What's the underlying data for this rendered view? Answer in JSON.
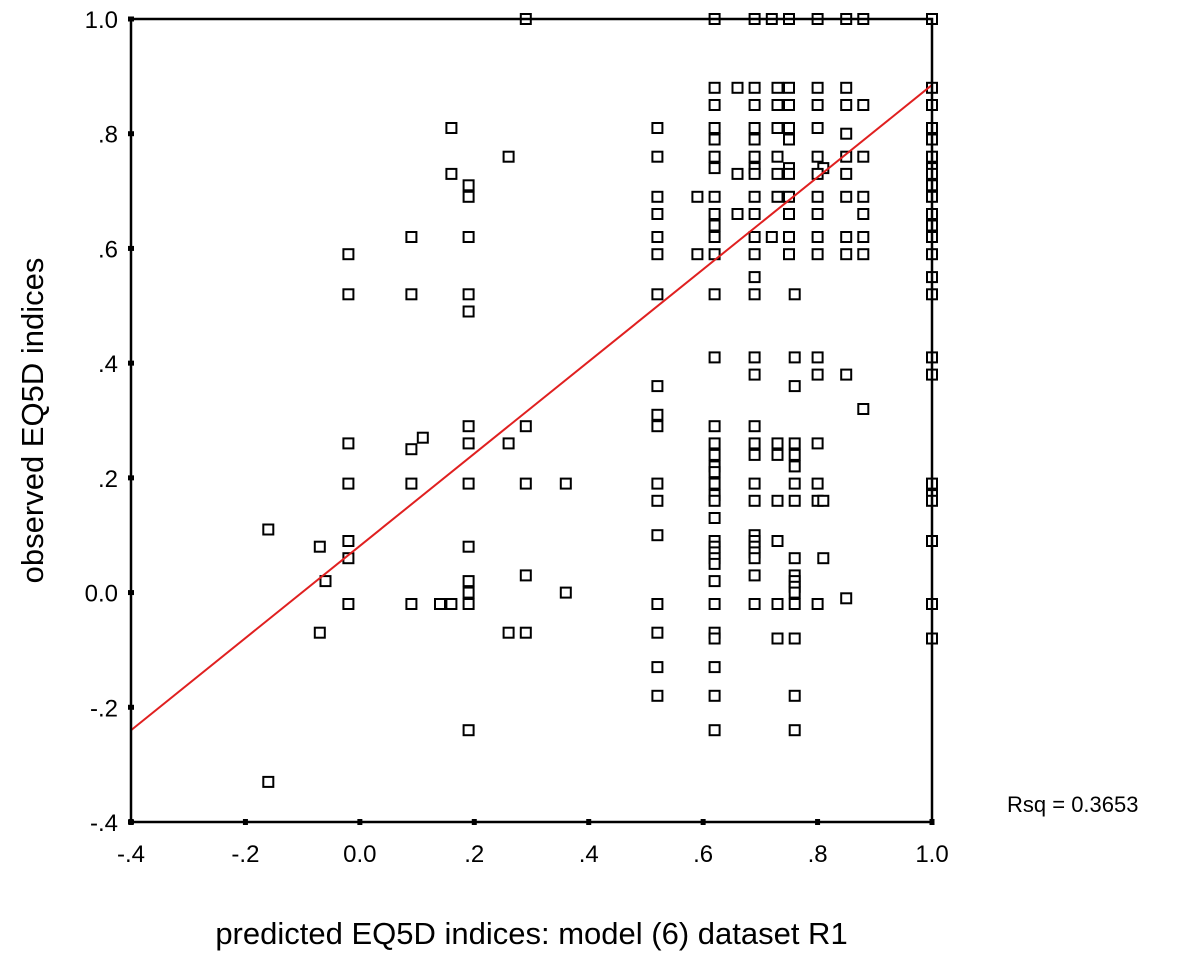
{
  "chart_data": {
    "type": "scatter",
    "xlabel": "predicted EQ5D indices: model (6) dataset R1",
    "ylabel": "observed EQ5D indices",
    "xlim": [
      -0.4,
      1.0
    ],
    "ylim": [
      -0.4,
      1.0
    ],
    "x_ticks": [
      -0.4,
      -0.2,
      0.0,
      0.2,
      0.4,
      0.6,
      0.8,
      1.0
    ],
    "x_tick_labels": [
      "-.4",
      "-.2",
      "0.0",
      ".2",
      ".4",
      ".6",
      ".8",
      "1.0"
    ],
    "y_ticks": [
      -0.4,
      -0.2,
      0.0,
      0.2,
      0.4,
      0.6,
      0.8,
      1.0
    ],
    "y_tick_labels": [
      "-.4",
      "-.2",
      "0.0",
      ".2",
      ".4",
      ".6",
      ".8",
      "1.0"
    ],
    "grid": false,
    "annotation": "Rsq = 0.3653",
    "marker": "open-square",
    "fit_line": {
      "x": [
        -0.4,
        1.0
      ],
      "y": [
        -0.24,
        0.885
      ],
      "color": "#e02020"
    },
    "points": [
      [
        0.29,
        1.0
      ],
      [
        0.62,
        1.0
      ],
      [
        0.69,
        1.0
      ],
      [
        0.72,
        1.0
      ],
      [
        0.75,
        1.0
      ],
      [
        0.8,
        1.0
      ],
      [
        0.85,
        1.0
      ],
      [
        0.88,
        1.0
      ],
      [
        1.0,
        1.0
      ],
      [
        0.62,
        0.88
      ],
      [
        0.66,
        0.88
      ],
      [
        0.69,
        0.88
      ],
      [
        0.73,
        0.88
      ],
      [
        0.75,
        0.88
      ],
      [
        0.8,
        0.88
      ],
      [
        0.85,
        0.88
      ],
      [
        1.0,
        0.88
      ],
      [
        0.62,
        0.85
      ],
      [
        0.69,
        0.85
      ],
      [
        0.73,
        0.85
      ],
      [
        0.75,
        0.85
      ],
      [
        0.8,
        0.85
      ],
      [
        0.85,
        0.85
      ],
      [
        0.88,
        0.85
      ],
      [
        1.0,
        0.85
      ],
      [
        0.16,
        0.81
      ],
      [
        0.52,
        0.81
      ],
      [
        0.62,
        0.81
      ],
      [
        0.69,
        0.81
      ],
      [
        0.73,
        0.81
      ],
      [
        0.75,
        0.81
      ],
      [
        0.8,
        0.81
      ],
      [
        1.0,
        0.81
      ],
      [
        0.62,
        0.79
      ],
      [
        0.69,
        0.79
      ],
      [
        0.75,
        0.79
      ],
      [
        0.85,
        0.8
      ],
      [
        1.0,
        0.79
      ],
      [
        0.26,
        0.76
      ],
      [
        0.52,
        0.76
      ],
      [
        0.62,
        0.76
      ],
      [
        0.69,
        0.76
      ],
      [
        0.73,
        0.76
      ],
      [
        0.8,
        0.76
      ],
      [
        0.85,
        0.76
      ],
      [
        0.88,
        0.76
      ],
      [
        1.0,
        0.76
      ],
      [
        0.62,
        0.74
      ],
      [
        0.69,
        0.74
      ],
      [
        0.75,
        0.74
      ],
      [
        0.81,
        0.74
      ],
      [
        1.0,
        0.74
      ],
      [
        0.16,
        0.73
      ],
      [
        0.66,
        0.73
      ],
      [
        0.69,
        0.73
      ],
      [
        0.73,
        0.73
      ],
      [
        0.75,
        0.73
      ],
      [
        0.8,
        0.73
      ],
      [
        0.85,
        0.73
      ],
      [
        1.0,
        0.73
      ],
      [
        0.19,
        0.71
      ],
      [
        1.0,
        0.71
      ],
      [
        0.19,
        0.69
      ],
      [
        0.52,
        0.69
      ],
      [
        0.59,
        0.69
      ],
      [
        0.62,
        0.69
      ],
      [
        0.69,
        0.69
      ],
      [
        0.73,
        0.69
      ],
      [
        0.75,
        0.69
      ],
      [
        0.8,
        0.69
      ],
      [
        0.85,
        0.69
      ],
      [
        0.88,
        0.69
      ],
      [
        1.0,
        0.69
      ],
      [
        0.52,
        0.66
      ],
      [
        0.62,
        0.66
      ],
      [
        0.66,
        0.66
      ],
      [
        0.69,
        0.66
      ],
      [
        0.75,
        0.66
      ],
      [
        0.8,
        0.66
      ],
      [
        0.88,
        0.66
      ],
      [
        1.0,
        0.66
      ],
      [
        0.62,
        0.64
      ],
      [
        1.0,
        0.64
      ],
      [
        0.09,
        0.62
      ],
      [
        0.19,
        0.62
      ],
      [
        0.52,
        0.62
      ],
      [
        0.62,
        0.62
      ],
      [
        0.69,
        0.62
      ],
      [
        0.72,
        0.62
      ],
      [
        0.75,
        0.62
      ],
      [
        0.8,
        0.62
      ],
      [
        0.85,
        0.62
      ],
      [
        0.88,
        0.62
      ],
      [
        1.0,
        0.62
      ],
      [
        -0.02,
        0.59
      ],
      [
        0.52,
        0.59
      ],
      [
        0.59,
        0.59
      ],
      [
        0.62,
        0.59
      ],
      [
        0.69,
        0.59
      ],
      [
        0.75,
        0.59
      ],
      [
        0.8,
        0.59
      ],
      [
        0.85,
        0.59
      ],
      [
        0.88,
        0.59
      ],
      [
        1.0,
        0.59
      ],
      [
        0.69,
        0.55
      ],
      [
        1.0,
        0.55
      ],
      [
        -0.02,
        0.52
      ],
      [
        0.09,
        0.52
      ],
      [
        0.19,
        0.52
      ],
      [
        0.52,
        0.52
      ],
      [
        0.62,
        0.52
      ],
      [
        0.69,
        0.52
      ],
      [
        0.76,
        0.52
      ],
      [
        1.0,
        0.52
      ],
      [
        0.19,
        0.49
      ],
      [
        0.62,
        0.41
      ],
      [
        0.69,
        0.41
      ],
      [
        0.76,
        0.41
      ],
      [
        0.8,
        0.41
      ],
      [
        1.0,
        0.41
      ],
      [
        0.69,
        0.38
      ],
      [
        0.8,
        0.38
      ],
      [
        0.85,
        0.38
      ],
      [
        1.0,
        0.38
      ],
      [
        0.52,
        0.36
      ],
      [
        0.76,
        0.36
      ],
      [
        0.88,
        0.32
      ],
      [
        0.52,
        0.31
      ],
      [
        0.19,
        0.29
      ],
      [
        0.29,
        0.29
      ],
      [
        0.52,
        0.29
      ],
      [
        0.62,
        0.29
      ],
      [
        0.69,
        0.29
      ],
      [
        0.11,
        0.27
      ],
      [
        -0.02,
        0.26
      ],
      [
        0.19,
        0.26
      ],
      [
        0.26,
        0.26
      ],
      [
        0.62,
        0.26
      ],
      [
        0.69,
        0.26
      ],
      [
        0.73,
        0.26
      ],
      [
        0.76,
        0.26
      ],
      [
        0.8,
        0.26
      ],
      [
        0.09,
        0.25
      ],
      [
        0.62,
        0.24
      ],
      [
        0.69,
        0.24
      ],
      [
        0.73,
        0.24
      ],
      [
        0.76,
        0.24
      ],
      [
        0.62,
        0.22
      ],
      [
        0.76,
        0.22
      ],
      [
        0.62,
        0.21
      ],
      [
        -0.02,
        0.19
      ],
      [
        0.09,
        0.19
      ],
      [
        0.19,
        0.19
      ],
      [
        0.29,
        0.19
      ],
      [
        0.36,
        0.19
      ],
      [
        0.52,
        0.19
      ],
      [
        0.62,
        0.19
      ],
      [
        0.69,
        0.19
      ],
      [
        0.76,
        0.19
      ],
      [
        0.8,
        0.19
      ],
      [
        1.0,
        0.19
      ],
      [
        0.62,
        0.17
      ],
      [
        1.0,
        0.17
      ],
      [
        0.52,
        0.16
      ],
      [
        0.62,
        0.16
      ],
      [
        0.69,
        0.16
      ],
      [
        0.73,
        0.16
      ],
      [
        0.76,
        0.16
      ],
      [
        0.8,
        0.16
      ],
      [
        0.81,
        0.16
      ],
      [
        1.0,
        0.16
      ],
      [
        0.62,
        0.13
      ],
      [
        -0.16,
        0.11
      ],
      [
        0.52,
        0.1
      ],
      [
        0.69,
        0.1
      ],
      [
        -0.02,
        0.09
      ],
      [
        0.62,
        0.09
      ],
      [
        0.69,
        0.09
      ],
      [
        0.73,
        0.09
      ],
      [
        1.0,
        0.09
      ],
      [
        -0.07,
        0.08
      ],
      [
        0.19,
        0.08
      ],
      [
        0.62,
        0.08
      ],
      [
        0.69,
        0.08
      ],
      [
        0.62,
        0.07
      ],
      [
        0.69,
        0.07
      ],
      [
        0.62,
        0.06
      ],
      [
        -0.02,
        0.06
      ],
      [
        0.69,
        0.06
      ],
      [
        0.76,
        0.06
      ],
      [
        0.81,
        0.06
      ],
      [
        0.62,
        0.05
      ],
      [
        0.29,
        0.03
      ],
      [
        0.69,
        0.03
      ],
      [
        0.76,
        0.03
      ],
      [
        -0.06,
        0.02
      ],
      [
        0.19,
        0.02
      ],
      [
        0.62,
        0.02
      ],
      [
        0.76,
        0.02
      ],
      [
        0.76,
        0.01
      ],
      [
        0.19,
        0.0
      ],
      [
        0.36,
        0.0
      ],
      [
        0.76,
        0.0
      ],
      [
        -0.02,
        -0.02
      ],
      [
        0.09,
        -0.02
      ],
      [
        0.14,
        -0.02
      ],
      [
        0.16,
        -0.02
      ],
      [
        0.19,
        -0.02
      ],
      [
        0.52,
        -0.02
      ],
      [
        0.62,
        -0.02
      ],
      [
        0.69,
        -0.02
      ],
      [
        0.73,
        -0.02
      ],
      [
        0.76,
        -0.02
      ],
      [
        0.8,
        -0.02
      ],
      [
        0.85,
        -0.01
      ],
      [
        1.0,
        -0.02
      ],
      [
        -0.07,
        -0.07
      ],
      [
        0.26,
        -0.07
      ],
      [
        0.29,
        -0.07
      ],
      [
        0.52,
        -0.07
      ],
      [
        0.62,
        -0.07
      ],
      [
        0.62,
        -0.08
      ],
      [
        0.73,
        -0.08
      ],
      [
        0.76,
        -0.08
      ],
      [
        1.0,
        -0.08
      ],
      [
        0.52,
        -0.13
      ],
      [
        0.62,
        -0.13
      ],
      [
        0.52,
        -0.18
      ],
      [
        0.62,
        -0.18
      ],
      [
        0.76,
        -0.18
      ],
      [
        0.19,
        -0.24
      ],
      [
        0.62,
        -0.24
      ],
      [
        0.76,
        -0.24
      ],
      [
        -0.16,
        -0.33
      ]
    ]
  }
}
